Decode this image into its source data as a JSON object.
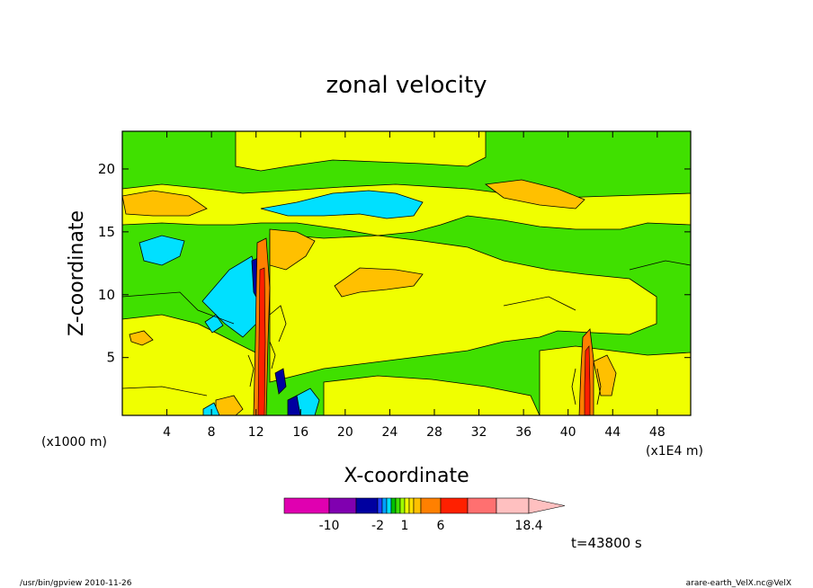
{
  "chart_data": {
    "type": "heatmap",
    "title": "zonal velocity",
    "xlabel": "X-coordinate",
    "ylabel": "Z-coordinate",
    "x_unit_left": "(x1000 m)",
    "x_unit_right": "(x1E4 m)",
    "xlim": [
      0,
      51
    ],
    "ylim": [
      0.4,
      23
    ],
    "x_ticks": [
      4,
      8,
      12,
      16,
      20,
      24,
      28,
      32,
      36,
      40,
      44,
      48
    ],
    "y_ticks": [
      5,
      10,
      15,
      20
    ],
    "colorbar": {
      "levels": [
        -14,
        -10,
        -6,
        -2,
        -1.5,
        -1,
        -0.5,
        0,
        0.5,
        1,
        1.5,
        2,
        3,
        6,
        10,
        14,
        18.4
      ],
      "colors": [
        "#e000b0",
        "#8000b0",
        "#0000a0",
        "#2040ff",
        "#00a0ff",
        "#00e0ff",
        "#00c000",
        "#40e000",
        "#a0ff00",
        "#f0ff00",
        "#ffe000",
        "#ffc000",
        "#ff8000",
        "#ff2000",
        "#ff7070",
        "#ffc0c0"
      ],
      "tick_labels": [
        "-10",
        "-2",
        "1",
        "6",
        "18.4"
      ],
      "tick_values": [
        -10,
        -2,
        1,
        6,
        18.4
      ]
    },
    "time_label": "t=43800 s",
    "regions_note": "background ~0 to 0.5 (green), broad bands of 0.5-1 (yellow) and 1-3 (orange), small negative patches (cyan/blue) near x=12 and x=42 where strong convective updraft columns occur"
  },
  "footer": {
    "left": "/usr/bin/gpview   2010-11-26",
    "right": "arare-earth_VelX.nc@VelX"
  }
}
